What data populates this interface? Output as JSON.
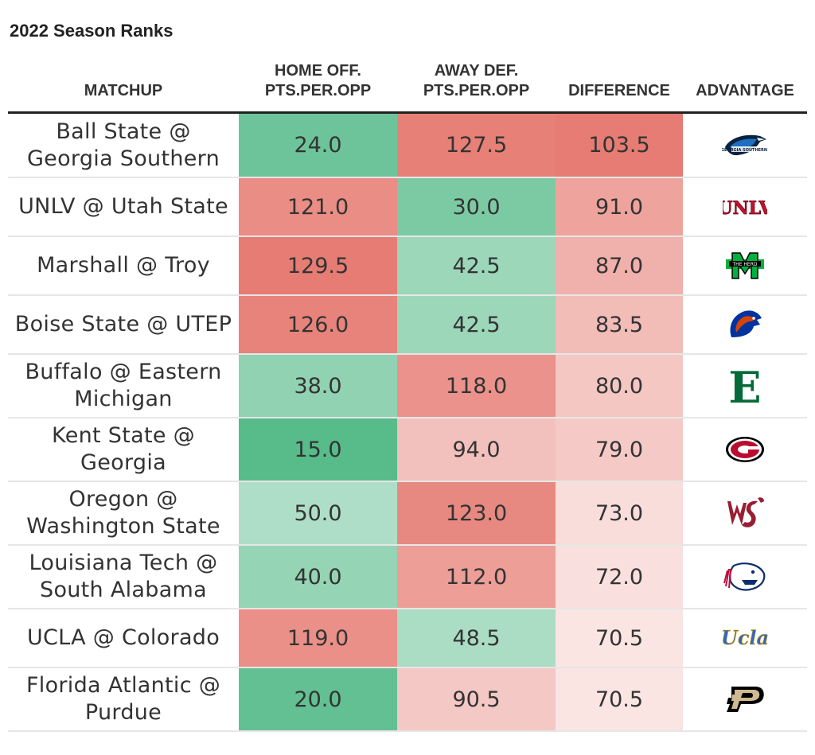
{
  "title": "2022 Season Ranks",
  "headers": {
    "matchup": "MATCHUP",
    "home_off_line1": "HOME OFF.",
    "home_off_line2": "PTS.PER.OPP",
    "away_def_line1": "AWAY DEF.",
    "away_def_line2": "PTS.PER.OPP",
    "difference": "DIFFERENCE",
    "advantage": "ADVANTAGE"
  },
  "colors": {
    "green_strong": "#57bb8a",
    "red_strong": "#e67c73",
    "white": "#ffffff",
    "header_rule": "#222222"
  },
  "chart_data": {
    "type": "table",
    "title": "2022 Season Ranks",
    "columns": [
      "MATCHUP",
      "HOME OFF. PTS.PER.OPP",
      "AWAY DEF. PTS.PER.OPP",
      "DIFFERENCE",
      "ADVANTAGE"
    ],
    "rows": [
      {
        "matchup_line1": "Ball State @",
        "matchup_line2": "Georgia Southern",
        "home": "24.0",
        "away": "127.5",
        "diff": "103.5",
        "advantage_icon": "georgia-southern-eagle-logo"
      },
      {
        "matchup_line1": "UNLV @ Utah State",
        "matchup_line2": "",
        "home": "121.0",
        "away": "30.0",
        "diff": "91.0",
        "advantage_icon": "unlv-logo"
      },
      {
        "matchup_line1": "Marshall @ Troy",
        "matchup_line2": "",
        "home": "129.5",
        "away": "42.5",
        "diff": "87.0",
        "advantage_icon": "marshall-herd-logo"
      },
      {
        "matchup_line1": "Boise State @ UTEP",
        "matchup_line2": "",
        "home": "126.0",
        "away": "42.5",
        "diff": "83.5",
        "advantage_icon": "boise-state-bronco-logo"
      },
      {
        "matchup_line1": "Buffalo @ Eastern",
        "matchup_line2": "Michigan",
        "home": "38.0",
        "away": "118.0",
        "diff": "80.0",
        "advantage_icon": "eastern-michigan-e-logo"
      },
      {
        "matchup_line1": "Kent State @",
        "matchup_line2": "Georgia",
        "home": "15.0",
        "away": "94.0",
        "diff": "79.0",
        "advantage_icon": "georgia-g-logo"
      },
      {
        "matchup_line1": "Oregon @",
        "matchup_line2": "Washington State",
        "home": "50.0",
        "away": "123.0",
        "diff": "73.0",
        "advantage_icon": "washington-state-cougar-logo"
      },
      {
        "matchup_line1": "Louisiana Tech @",
        "matchup_line2": "South Alabama",
        "home": "40.0",
        "away": "112.0",
        "diff": "72.0",
        "advantage_icon": "south-alabama-jaguar-logo"
      },
      {
        "matchup_line1": "UCLA @ Colorado",
        "matchup_line2": "",
        "home": "119.0",
        "away": "48.5",
        "diff": "70.5",
        "advantage_icon": "ucla-script-logo"
      },
      {
        "matchup_line1": "Florida Atlantic @",
        "matchup_line2": "Purdue",
        "home": "20.0",
        "away": "90.5",
        "diff": "70.5",
        "advantage_icon": "purdue-p-logo"
      }
    ],
    "logos": {
      "unlv_text": "UNLV",
      "ucla_text": "Ucla",
      "purdue_text": "P",
      "emu_text": "E"
    }
  }
}
